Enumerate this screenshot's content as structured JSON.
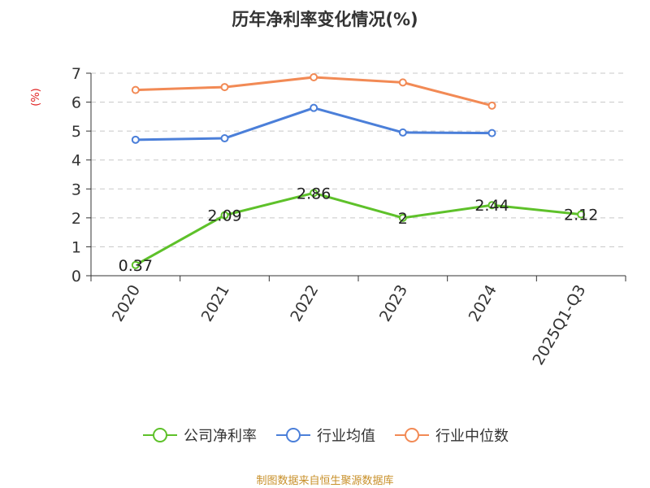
{
  "chart_data": {
    "type": "line",
    "title": "历年净利率变化情况(%)",
    "ylabel": "(%)",
    "xlabel": "",
    "categories": [
      "2020",
      "2021",
      "2022",
      "2023",
      "2024",
      "2025Q1-Q3"
    ],
    "ylim": [
      0,
      7
    ],
    "yticks": [
      0,
      1,
      2,
      3,
      4,
      5,
      6,
      7
    ],
    "grid": true,
    "legend_position": "bottom",
    "series": [
      {
        "name": "公司净利率",
        "color": "#5ec12a",
        "values": [
          0.37,
          2.09,
          2.86,
          2,
          2.44,
          2.12
        ],
        "labels": [
          "0.37",
          "2.09",
          "2.86",
          "2",
          "2.44",
          "2.12"
        ]
      },
      {
        "name": "行业均值",
        "color": "#4b7fd9",
        "values": [
          4.7,
          4.75,
          5.8,
          4.95,
          4.93,
          null
        ]
      },
      {
        "name": "行业中位数",
        "color": "#f28a55",
        "values": [
          6.42,
          6.52,
          6.86,
          6.68,
          5.88,
          null
        ]
      }
    ]
  },
  "footer": {
    "source": "制图数据来自恒生聚源数据库"
  }
}
